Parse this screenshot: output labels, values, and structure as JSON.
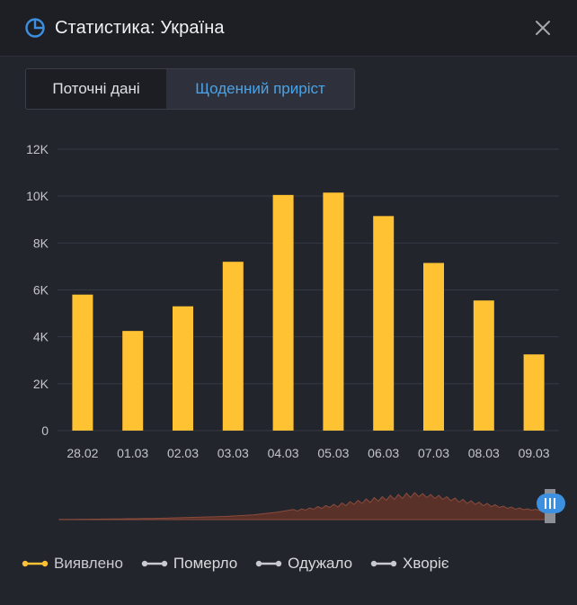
{
  "header": {
    "title": "Статистика: Україна",
    "logo_icon": "pie-chart-icon",
    "close_icon": "close-icon"
  },
  "tabs": [
    {
      "label": "Поточні дані",
      "active": false
    },
    {
      "label": "Щоденний приріст",
      "active": true
    }
  ],
  "colors": {
    "bar": "#ffc233",
    "accent": "#3d8fe0",
    "grid": "#363944",
    "axis_text": "#c3c5ca",
    "navigator_fill": "#5a3129",
    "navigator_line": "#8a4b3c",
    "legend_inactive": "#c8cacf"
  },
  "chart_data": {
    "type": "bar",
    "categories": [
      "28.02",
      "01.03",
      "02.03",
      "03.03",
      "04.03",
      "05.03",
      "06.03",
      "07.03",
      "08.03",
      "09.03"
    ],
    "series": [
      {
        "name": "Виявлено",
        "values": [
          5800,
          4250,
          5300,
          7200,
          10050,
          10150,
          9150,
          7150,
          5550,
          3250
        ]
      }
    ],
    "ylim": [
      0,
      12000
    ],
    "yticks": [
      {
        "value": 0,
        "label": "0"
      },
      {
        "value": 2000,
        "label": "2K"
      },
      {
        "value": 4000,
        "label": "4K"
      },
      {
        "value": 6000,
        "label": "6K"
      },
      {
        "value": 8000,
        "label": "8K"
      },
      {
        "value": 10000,
        "label": "10K"
      },
      {
        "value": 12000,
        "label": "12K"
      }
    ],
    "grid": true
  },
  "navigator": {
    "handle_icon": "drag-handle-icon",
    "overview_values": [
      100,
      100,
      110,
      120,
      130,
      140,
      150,
      160,
      180,
      200,
      220,
      240,
      260,
      280,
      300,
      320,
      350,
      380,
      400,
      420,
      450,
      480,
      500,
      520,
      560,
      600,
      650,
      700,
      750,
      800,
      850,
      900,
      950,
      1000,
      1050,
      1100,
      1150,
      1200,
      1250,
      1300,
      1350,
      1400,
      1500,
      1600,
      1700,
      1800,
      1900,
      2000,
      2100,
      2300,
      2500,
      2700,
      2900,
      3100,
      3300,
      3600,
      3900,
      4200,
      4500,
      3800,
      4800,
      4200,
      5200,
      4600,
      5800,
      5000,
      6200,
      5400,
      6800,
      5600,
      7400,
      6200,
      8000,
      6800,
      8600,
      7200,
      9200,
      7600,
      9800,
      8200,
      10200,
      8600,
      10800,
      9000,
      11200,
      9400,
      11800,
      9800,
      12000,
      10200,
      11600,
      9800,
      11200,
      9400,
      10800,
      9000,
      10200,
      8400,
      9600,
      7800,
      9000,
      7200,
      8400,
      6800,
      7800,
      6200,
      7200,
      5800,
      6600,
      5400,
      6000,
      5000,
      5600,
      4600,
      5200,
      4400,
      4800,
      4200,
      4600,
      4000,
      4200,
      3800,
      3400
    ]
  },
  "legend": [
    {
      "label": "Виявлено",
      "active": true
    },
    {
      "label": "Померло",
      "active": false
    },
    {
      "label": "Одужало",
      "active": false
    },
    {
      "label": "Хворіє",
      "active": false
    }
  ]
}
